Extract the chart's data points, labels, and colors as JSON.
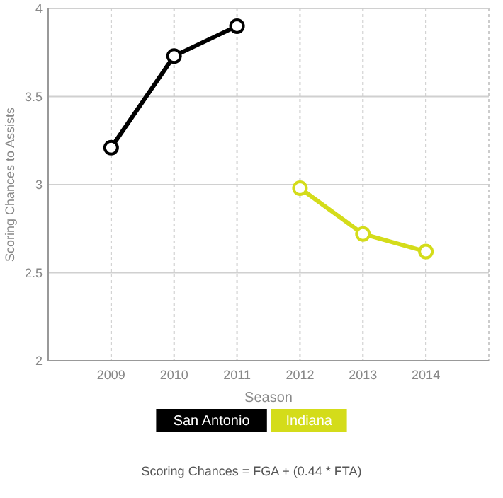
{
  "chart_data": {
    "type": "line",
    "xlabel": "Season",
    "ylabel": "Scoring Chances to Assists",
    "xlim": [
      2008,
      2015
    ],
    "xticks": [
      2009,
      2010,
      2011,
      2012,
      2013,
      2014
    ],
    "ylim": [
      2,
      4
    ],
    "yticks": [
      2,
      2.5,
      3,
      3.5,
      4
    ],
    "series": [
      {
        "name": "San Antonio",
        "color": "#000000",
        "x": [
          2009,
          2010,
          2011
        ],
        "values": [
          3.21,
          3.73,
          3.9
        ]
      },
      {
        "name": "Indiana",
        "color": "#d4dc1a",
        "x": [
          2012,
          2013,
          2014
        ],
        "values": [
          2.98,
          2.72,
          2.62
        ]
      }
    ],
    "grid": true,
    "legend": "bottom",
    "marker": "circle",
    "line_style": "solid",
    "annotations": [
      "Scoring Chances = FGA + (0.44 * FTA)"
    ]
  }
}
